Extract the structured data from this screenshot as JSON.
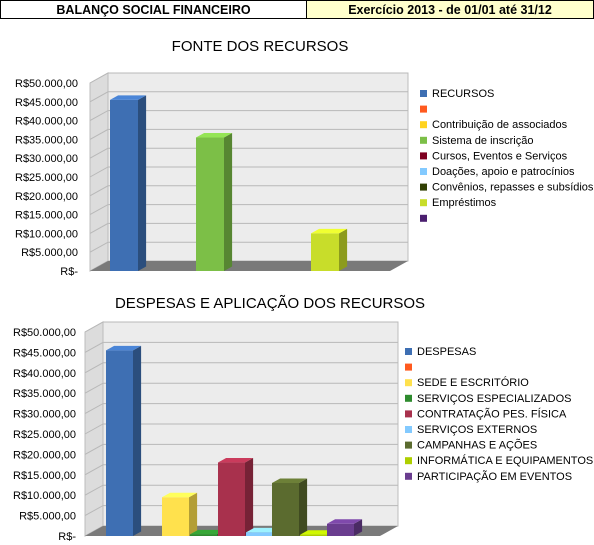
{
  "header": {
    "left_title": "BALANÇO SOCIAL FINANCEIRO",
    "right_title": "Exercício 2013  - de 01/01 até 31/12"
  },
  "colors": {
    "header_right_bg": "#ffffcc",
    "wall": "#ececec",
    "floor": "#7a7a7a"
  },
  "chart_data": [
    {
      "type": "bar",
      "title": "FONTE DOS RECURSOS",
      "ylim": [
        0,
        50000
      ],
      "grid": true,
      "legend_position": "right",
      "yticks": [
        "R$-",
        "R$5.000,00",
        "R$10.000,00",
        "R$15.000,00",
        "R$20.000,00",
        "R$25.000,00",
        "R$30.000,00",
        "R$35.000,00",
        "R$40.000,00",
        "R$45.000,00",
        "R$50.000,00"
      ],
      "series": [
        {
          "name": "RECURSOS",
          "value": 45500,
          "color": "#3e6fb3"
        },
        {
          "name": "",
          "value": 0,
          "color": "#ff5a1f"
        },
        {
          "name": "Contribuição de associados",
          "value": 0,
          "color": "#ffd320"
        },
        {
          "name": "Sistema de inscrição",
          "value": 35500,
          "color": "#7cbf47"
        },
        {
          "name": "Cursos, Eventos e Serviços",
          "value": 0,
          "color": "#7e0021"
        },
        {
          "name": "Doações, apoio e patrocínios",
          "value": 0,
          "color": "#83caff"
        },
        {
          "name": "Convênios, repasses e subsídios",
          "value": 0,
          "color": "#314004"
        },
        {
          "name": "Empréstimos",
          "value": 10000,
          "color": "#c8dd2a"
        },
        {
          "name": "",
          "value": 0,
          "color": "#4b1f6f"
        }
      ]
    },
    {
      "type": "bar",
      "title": "DESPESAS E APLICAÇÃO DOS RECURSOS",
      "ylim": [
        0,
        50000
      ],
      "grid": true,
      "legend_position": "right",
      "yticks": [
        "R$-",
        "R$5.000,00",
        "R$10.000,00",
        "R$15.000,00",
        "R$20.000,00",
        "R$25.000,00",
        "R$30.000,00",
        "R$35.000,00",
        "R$40.000,00",
        "R$45.000,00",
        "R$50.000,00"
      ],
      "series": [
        {
          "name": "DESPESAS",
          "value": 45500,
          "color": "#3e6fb3"
        },
        {
          "name": "",
          "value": 0,
          "color": "#ff5a1f"
        },
        {
          "name": "SEDE E ESCRITÓRIO",
          "value": 9500,
          "color": "#ffe14d"
        },
        {
          "name": "SERVIÇOS ESPECIALIZADOS",
          "value": 400,
          "color": "#2e8b2e"
        },
        {
          "name": "CONTRATAÇÃO PES. FÍSICA",
          "value": 18000,
          "color": "#a8314d"
        },
        {
          "name": "SERVIÇOS EXTERNOS",
          "value": 900,
          "color": "#83caff"
        },
        {
          "name": "CAMPANHAS E AÇÕES",
          "value": 13000,
          "color": "#5b6b2f"
        },
        {
          "name": "INFORMÁTICA E EQUIPAMENTOS",
          "value": 300,
          "color": "#aecf00"
        },
        {
          "name": "PARTICIPAÇÃO EM EVENTOS",
          "value": 3000,
          "color": "#6a3d8f"
        }
      ]
    }
  ]
}
